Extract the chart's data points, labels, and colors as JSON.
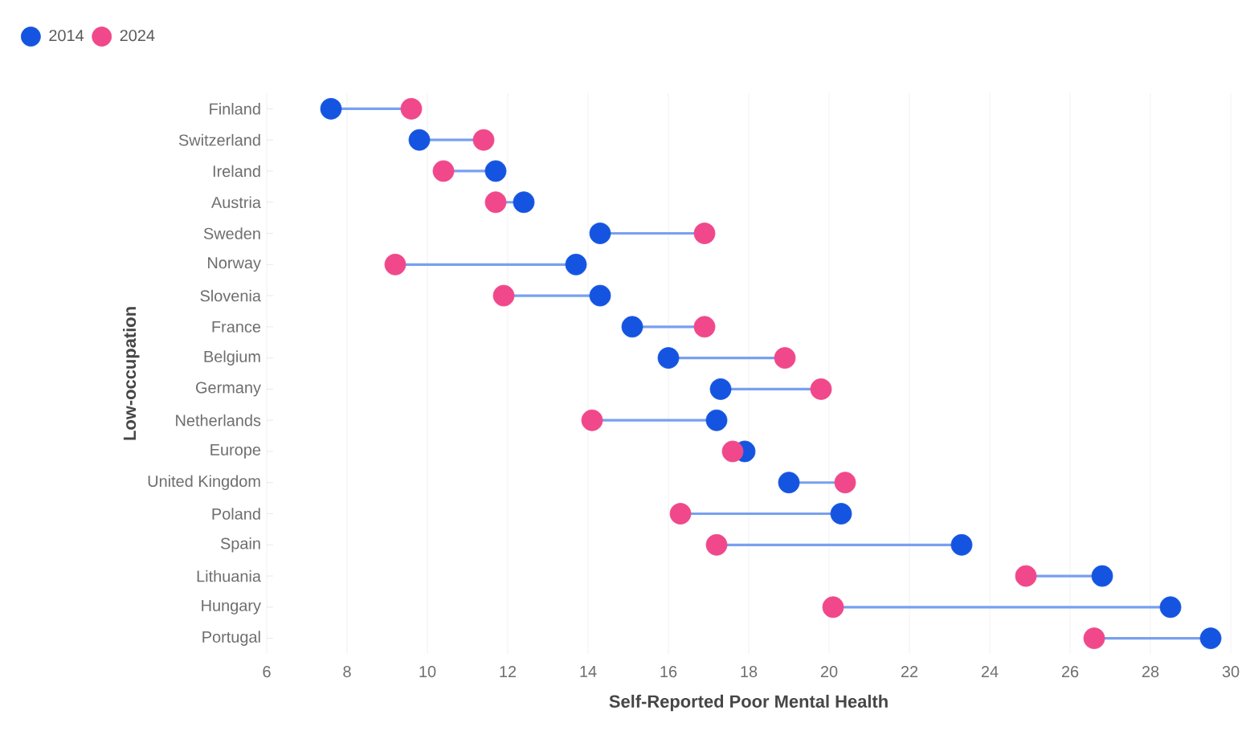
{
  "chart_data": {
    "type": "scatter",
    "orientation": "horizontal",
    "xlabel": "Self-Reported Poor Mental Health",
    "ylabel": "Low-occupation",
    "categories": [
      "Finland",
      "Switzerland",
      "Ireland",
      "Austria",
      "Sweden",
      "Norway",
      "Slovenia",
      "France",
      "Belgium",
      "Germany",
      "Netherlands",
      "Europe",
      "United Kingdom",
      "Poland",
      "Spain",
      "Lithuania",
      "Hungary",
      "Portugal"
    ],
    "series": [
      {
        "name": "2014",
        "color": "#1454e0",
        "values": [
          7.6,
          9.8,
          11.7,
          12.4,
          14.3,
          13.7,
          14.3,
          15.1,
          16.0,
          17.3,
          17.2,
          17.9,
          19.0,
          20.3,
          23.3,
          26.8,
          28.5,
          29.5
        ]
      },
      {
        "name": "2024",
        "color": "#f0488a",
        "values": [
          9.6,
          11.4,
          10.4,
          11.7,
          16.9,
          9.2,
          11.9,
          16.9,
          18.9,
          19.8,
          14.1,
          17.6,
          20.4,
          16.3,
          17.2,
          24.9,
          20.1,
          26.6
        ]
      }
    ],
    "xlim": [
      6,
      30
    ],
    "xticks": [
      6,
      8,
      10,
      12,
      14,
      16,
      18,
      20,
      22,
      24,
      26,
      28,
      30
    ],
    "grid": "x",
    "legend": "top left"
  }
}
